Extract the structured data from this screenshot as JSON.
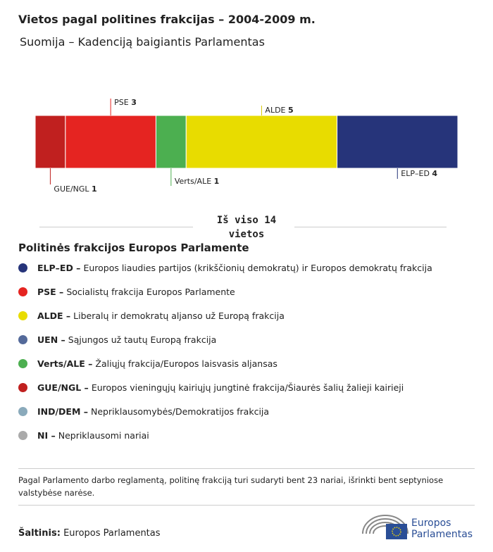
{
  "chart_data": {
    "type": "stacked-bar",
    "title": "Vietos pagal politines frakcijas – 2004-2009 m.",
    "subtitle": "Suomija – Kadenciją baigiantis Parlamentas",
    "series": [
      {
        "name": "GUE/NGL",
        "color": "#c0201f",
        "values": [
          1
        ]
      },
      {
        "name": "PSE",
        "color": "#e52421",
        "values": [
          3
        ]
      },
      {
        "name": "Verts/ALE",
        "color": "#4caf50",
        "values": [
          1
        ]
      },
      {
        "name": "ALDE",
        "color": "#e8dc00",
        "values": [
          5
        ]
      },
      {
        "name": "ELP–ED",
        "color": "#26347a",
        "values": [
          4
        ]
      }
    ],
    "xlim": [
      0,
      14
    ],
    "total_label": "Iš viso 14 vietos",
    "legend_title": "Politinės frakcijos Europos Parlamente",
    "legend_items": [
      {
        "name": "ELP–ED –",
        "description": "Europos liaudies partijos (krikščionių demokratų) ir Europos demokratų frakcija",
        "color": "#26347a"
      },
      {
        "name": "PSE –",
        "description": "Socialistų frakcija Europos Parlamente",
        "color": "#e52421"
      },
      {
        "name": "ALDE –",
        "description": "Liberalų ir demokratų aljanso už Europą frakcija",
        "color": "#e8dc00"
      },
      {
        "name": "UEN –",
        "description": "Sąjungos už tautų Europą frakcija",
        "color": "#546a9a"
      },
      {
        "name": "Verts/ALE –",
        "description": "Žaliųjų frakcija/Europos laisvasis aljansas",
        "color": "#4caf50"
      },
      {
        "name": "GUE/NGL –",
        "description": "Europos vieningųjų kairiųjų jungtinė frakcija/Šiaurės šalių žalieji kairieji",
        "color": "#c0201f"
      },
      {
        "name": "IND/DEM –",
        "description": "Nepriklausomybės/Demokratijos frakcija",
        "color": "#8aaabb"
      },
      {
        "name": "NI –",
        "description": "Nepriklausomi nariai",
        "color": "#aaaaaa"
      }
    ],
    "footnote": "Pagal Parlamento darbo reglamentą, politinę frakciją turi sudaryti bent 23 nariai, išrinkti bent septyniose valstybėse narėse.",
    "source_label": "Šaltinis:",
    "source": "Europos Parlamentas",
    "logo_text": [
      "Europos",
      "Parlamentas"
    ]
  }
}
